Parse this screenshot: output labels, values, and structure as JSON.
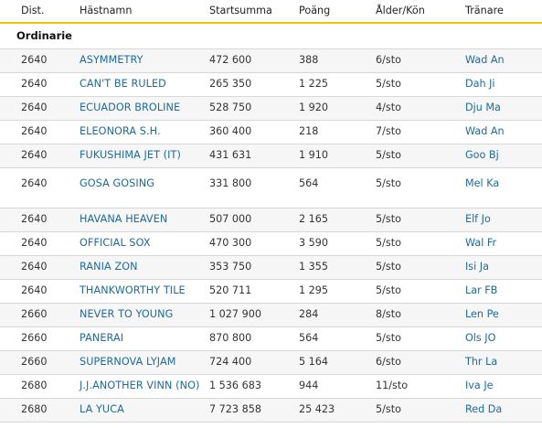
{
  "columns": {
    "dist": "Dist.",
    "name": "Hästnamn",
    "start": "Startsumma",
    "points": "Poäng",
    "age": "Ålder/Kön",
    "trainer": "Tränare"
  },
  "section_title": "Ordinarie",
  "rows": [
    {
      "dist": "2640",
      "name": "ASYMMETRY",
      "start": "472 600",
      "points": "388",
      "age": "6/sto",
      "trainer": "Wad An"
    },
    {
      "dist": "2640",
      "name": "CAN'T BE RULED",
      "start": "265 350",
      "points": "1 225",
      "age": "5/sto",
      "trainer": "Dah Ji"
    },
    {
      "dist": "2640",
      "name": "ECUADOR BROLINE",
      "start": "528 750",
      "points": "1 920",
      "age": "4/sto",
      "trainer": "Dju Ma"
    },
    {
      "dist": "2640",
      "name": "ELEONORA S.H.",
      "start": "360 400",
      "points": "218",
      "age": "7/sto",
      "trainer": "Wad An"
    },
    {
      "dist": "2640",
      "name": "FUKUSHIMA JET (IT)",
      "start": "431 631",
      "points": "1 910",
      "age": "5/sto",
      "trainer": "Goo Bj"
    },
    {
      "dist": "2640",
      "name": "GOSA GOSING",
      "start": "331 800",
      "points": "564",
      "age": "5/sto",
      "trainer": "Mel Ka"
    },
    {
      "dist": "2640",
      "name": "HAVANA HEAVEN",
      "start": "507 000",
      "points": "2 165",
      "age": "5/sto",
      "trainer": "Elf Jo"
    },
    {
      "dist": "2640",
      "name": "OFFICIAL SOX",
      "start": "470 300",
      "points": "3 590",
      "age": "5/sto",
      "trainer": "Wal Fr"
    },
    {
      "dist": "2640",
      "name": "RANIA ZON",
      "start": "353 750",
      "points": "1 355",
      "age": "5/sto",
      "trainer": "Isi Ja"
    },
    {
      "dist": "2640",
      "name": "THANKWORTHY TILE",
      "start": "520 711",
      "points": "1 295",
      "age": "5/sto",
      "trainer": "Lar FB"
    },
    {
      "dist": "2660",
      "name": "NEVER TO YOUNG",
      "start": "1 027 900",
      "points": "284",
      "age": "8/sto",
      "trainer": "Len Pe"
    },
    {
      "dist": "2660",
      "name": "PANERAI",
      "start": "870 800",
      "points": "564",
      "age": "5/sto",
      "trainer": "Ols JO"
    },
    {
      "dist": "2660",
      "name": "SUPERNOVA LYJAM",
      "start": "724 400",
      "points": "5 164",
      "age": "6/sto",
      "trainer": "Thr La"
    },
    {
      "dist": "2680",
      "name": "J.J.ANOTHER VINN (NO)",
      "start": "1 536 683",
      "points": "944",
      "age": "11/sto",
      "trainer": "Iva Je"
    },
    {
      "dist": "2680",
      "name": "LA YUCA",
      "start": "7 723 858",
      "points": "25 423",
      "age": "5/sto",
      "trainer": "Red Da"
    }
  ],
  "colors": {
    "link": "#1c6aa3",
    "accent_rule": "#f2c600",
    "row_alt": "#f6f6f6",
    "divider": "#d7d7d7"
  }
}
